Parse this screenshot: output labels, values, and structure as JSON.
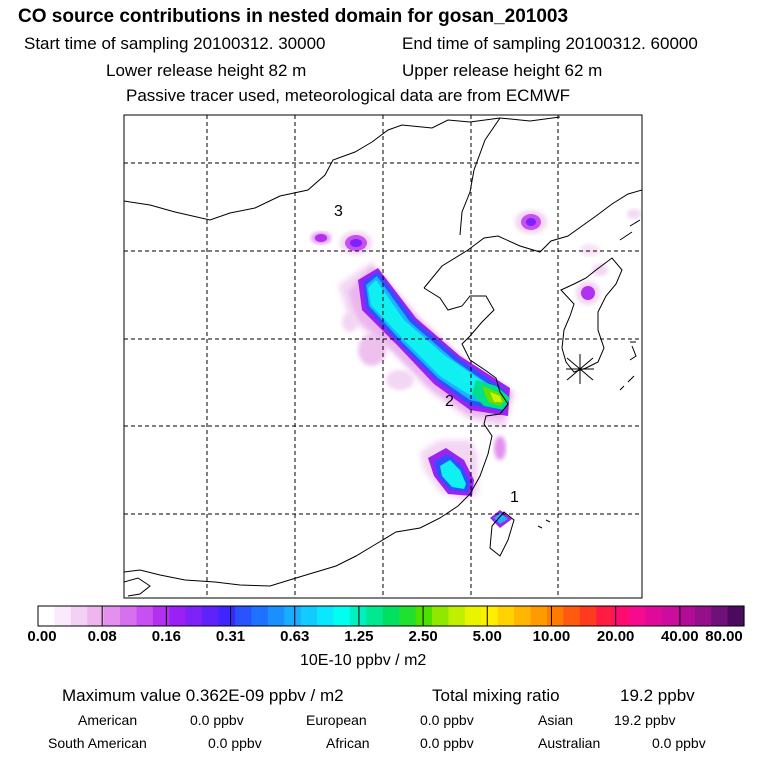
{
  "header": {
    "title": "CO  source contributions in nested domain for gosan_201003",
    "start_time": "Start time of sampling 20100312. 30000",
    "end_time": "End time of sampling 20100312. 60000",
    "lower_release": "Lower release height   82 m",
    "upper_release": "Upper release height   62 m",
    "tracer_note": "Passive tracer used, meteorological data are from ECMWF"
  },
  "map": {
    "labels": [
      "3",
      "2",
      "1"
    ],
    "receptor_marker": "asterisk-receptor"
  },
  "colorbar": {
    "tick_labels": [
      "0.00",
      "0.08",
      "0.16",
      "0.31",
      "0.63",
      "1.25",
      "2.50",
      "5.00",
      "10.00",
      "20.00",
      "40.00",
      "80.00"
    ],
    "unit": "10E-10 ppbv / m2",
    "colors": [
      "#ffffff",
      "#fbeafb",
      "#f5d0f5",
      "#eeb5ee",
      "#e390ee",
      "#d670ef",
      "#c850f0",
      "#b230f0",
      "#9b20f5",
      "#7d22f8",
      "#5f22fb",
      "#3f25ff",
      "#2a52ff",
      "#1e72ff",
      "#1a90ff",
      "#18adff",
      "#12cbff",
      "#0ae8ff",
      "#00ffee",
      "#00f0c0",
      "#00e890",
      "#00e060",
      "#20e030",
      "#50e000",
      "#90e800",
      "#c0f000",
      "#e8f400",
      "#ffee00",
      "#ffd200",
      "#ffb600",
      "#ff9a00",
      "#ff7a00",
      "#ff5a10",
      "#ff3a20",
      "#ff1c40",
      "#ff0c70",
      "#f50a90",
      "#e00a9a",
      "#cc0c9c",
      "#b20c96",
      "#94108a",
      "#70107a",
      "#4c0a5e"
    ]
  },
  "stats": {
    "max_label": "Maximum value  0.362E-09 ppbv / m2",
    "total_label": "Total mixing ratio",
    "total_value": "19.2 ppbv",
    "american_label": "American",
    "american_value": "0.0 ppbv",
    "european_label": "European",
    "european_value": "0.0 ppbv",
    "asian_label": "Asian",
    "asian_value": "19.2 ppbv",
    "south_american_label": "South American",
    "south_american_value": "0.0 ppbv",
    "african_label": "African",
    "african_value": "0.0 ppbv",
    "australian_label": "Australian",
    "australian_value": "0.0 ppbv"
  }
}
